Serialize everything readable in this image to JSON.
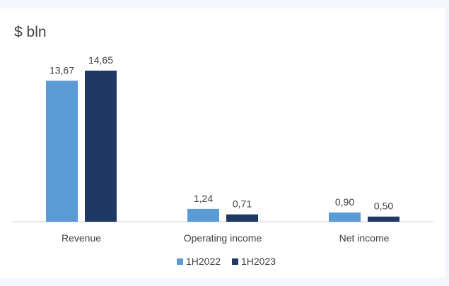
{
  "chart_data": {
    "type": "bar",
    "title": "",
    "ylabel": "$ bln",
    "xlabel": "",
    "categories": [
      "Revenue",
      "Operating income",
      "Net income"
    ],
    "series": [
      {
        "name": "1H2022",
        "color": "#5b9bd5",
        "values": [
          13.67,
          1.24,
          0.9
        ],
        "labels": [
          "13,67",
          "1,24",
          "0,90"
        ]
      },
      {
        "name": "1H2023",
        "color": "#1f3864",
        "values": [
          14.65,
          0.71,
          0.5
        ],
        "labels": [
          "14,65",
          "0,71",
          "0,50"
        ]
      }
    ],
    "ylim": [
      0,
      15
    ],
    "grid": false,
    "legend": "bottom"
  }
}
